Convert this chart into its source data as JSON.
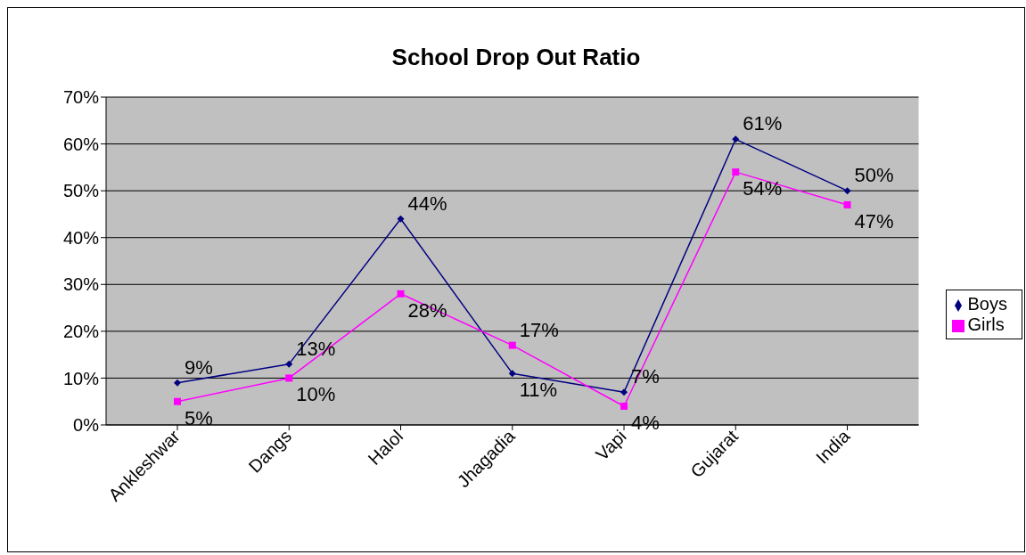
{
  "chart_data": {
    "type": "line",
    "title": "School Drop Out Ratio",
    "categories": [
      "Ankleshwar",
      "Dangs",
      "Halol",
      "Jhagadia",
      "Vapi",
      "Gujarat",
      "India"
    ],
    "series": [
      {
        "name": "Boys",
        "color": "#000080",
        "marker": "diamond",
        "values": [
          9,
          13,
          44,
          11,
          7,
          61,
          50
        ],
        "value_labels": [
          "9%",
          "13%",
          "44%",
          "11%",
          "7%",
          "61%",
          "50%"
        ]
      },
      {
        "name": "Girls",
        "color": "#ff00ff",
        "marker": "square",
        "values": [
          5,
          10,
          28,
          17,
          4,
          54,
          47
        ],
        "value_labels": [
          "5%",
          "10%",
          "28%",
          "17%",
          "4%",
          "54%",
          "47%"
        ]
      }
    ],
    "ylim": [
      0,
      70
    ],
    "yticks": [
      {
        "value": 0,
        "label": "0%"
      },
      {
        "value": 10,
        "label": "10%"
      },
      {
        "value": 20,
        "label": "20%"
      },
      {
        "value": 30,
        "label": "30%"
      },
      {
        "value": 40,
        "label": "40%"
      },
      {
        "value": 50,
        "label": "50%"
      },
      {
        "value": 60,
        "label": "60%"
      },
      {
        "value": 70,
        "label": "70%"
      }
    ],
    "grid": "y",
    "legend": "right"
  }
}
